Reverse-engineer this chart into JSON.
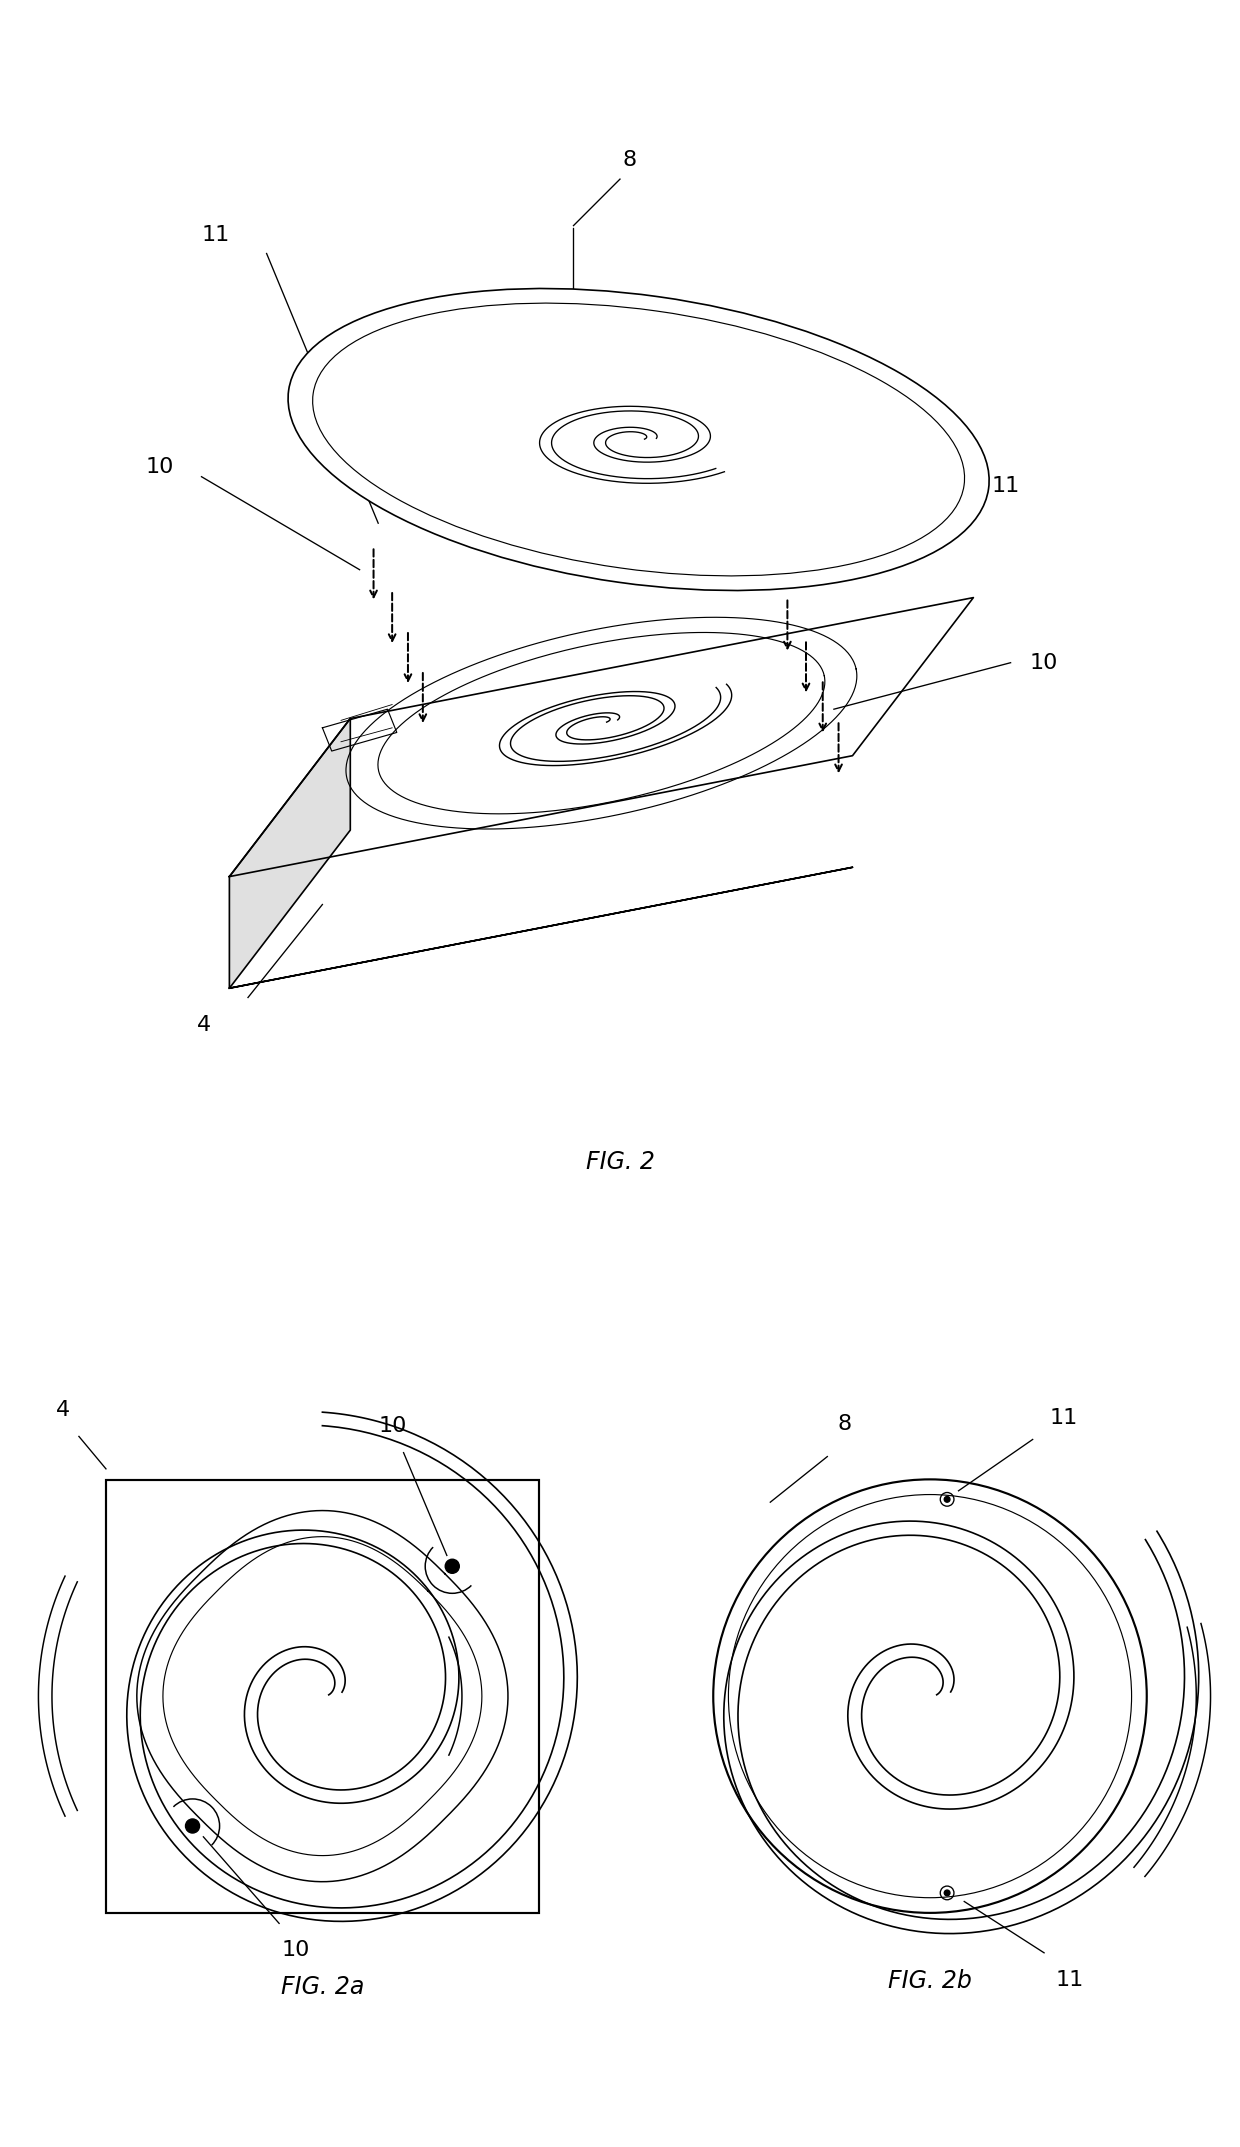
{
  "fig_title_1": "FIG. 2",
  "fig_title_2a": "FIG. 2a",
  "fig_title_2b": "FIG. 2b",
  "label_4": "4",
  "label_8": "8",
  "label_10": "10",
  "label_11": "11",
  "bg_color": "#ffffff",
  "line_color": "#000000",
  "font_size_label": 14,
  "font_size_title": 16
}
